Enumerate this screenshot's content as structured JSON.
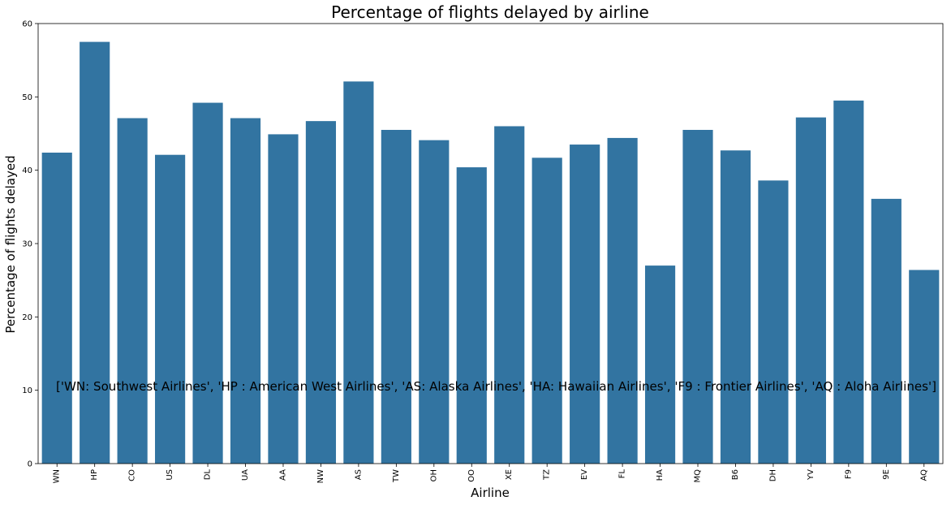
{
  "chart_data": {
    "type": "bar",
    "title": "Percentage of flights delayed by airline",
    "xlabel": "Airline",
    "ylabel": "Percentage of flights delayed",
    "ylim": [
      0,
      60
    ],
    "yticks": [
      0,
      10,
      20,
      30,
      40,
      50,
      60
    ],
    "grid": false,
    "bar_color": "#3274a1",
    "categories": [
      "WN",
      "HP",
      "CO",
      "US",
      "DL",
      "UA",
      "AA",
      "NW",
      "AS",
      "TW",
      "OH",
      "OO",
      "XE",
      "TZ",
      "EV",
      "FL",
      "HA",
      "MQ",
      "B6",
      "DH",
      "YV",
      "F9",
      "9E",
      "AQ"
    ],
    "values": [
      42.4,
      57.5,
      47.1,
      42.1,
      49.2,
      47.1,
      44.9,
      46.7,
      52.1,
      45.5,
      44.1,
      40.4,
      46.0,
      41.7,
      43.5,
      44.4,
      27.0,
      45.5,
      42.7,
      38.6,
      47.2,
      49.5,
      36.1,
      26.4
    ],
    "annotation": "['WN: Southwest Airlines', 'HP : American West Airlines', 'AS: Alaska Airlines', 'HA: Hawaiian Airlines', 'F9 : Frontier Airlines', 'AQ : Aloha Airlines']",
    "annotation_y": 10.5
  }
}
